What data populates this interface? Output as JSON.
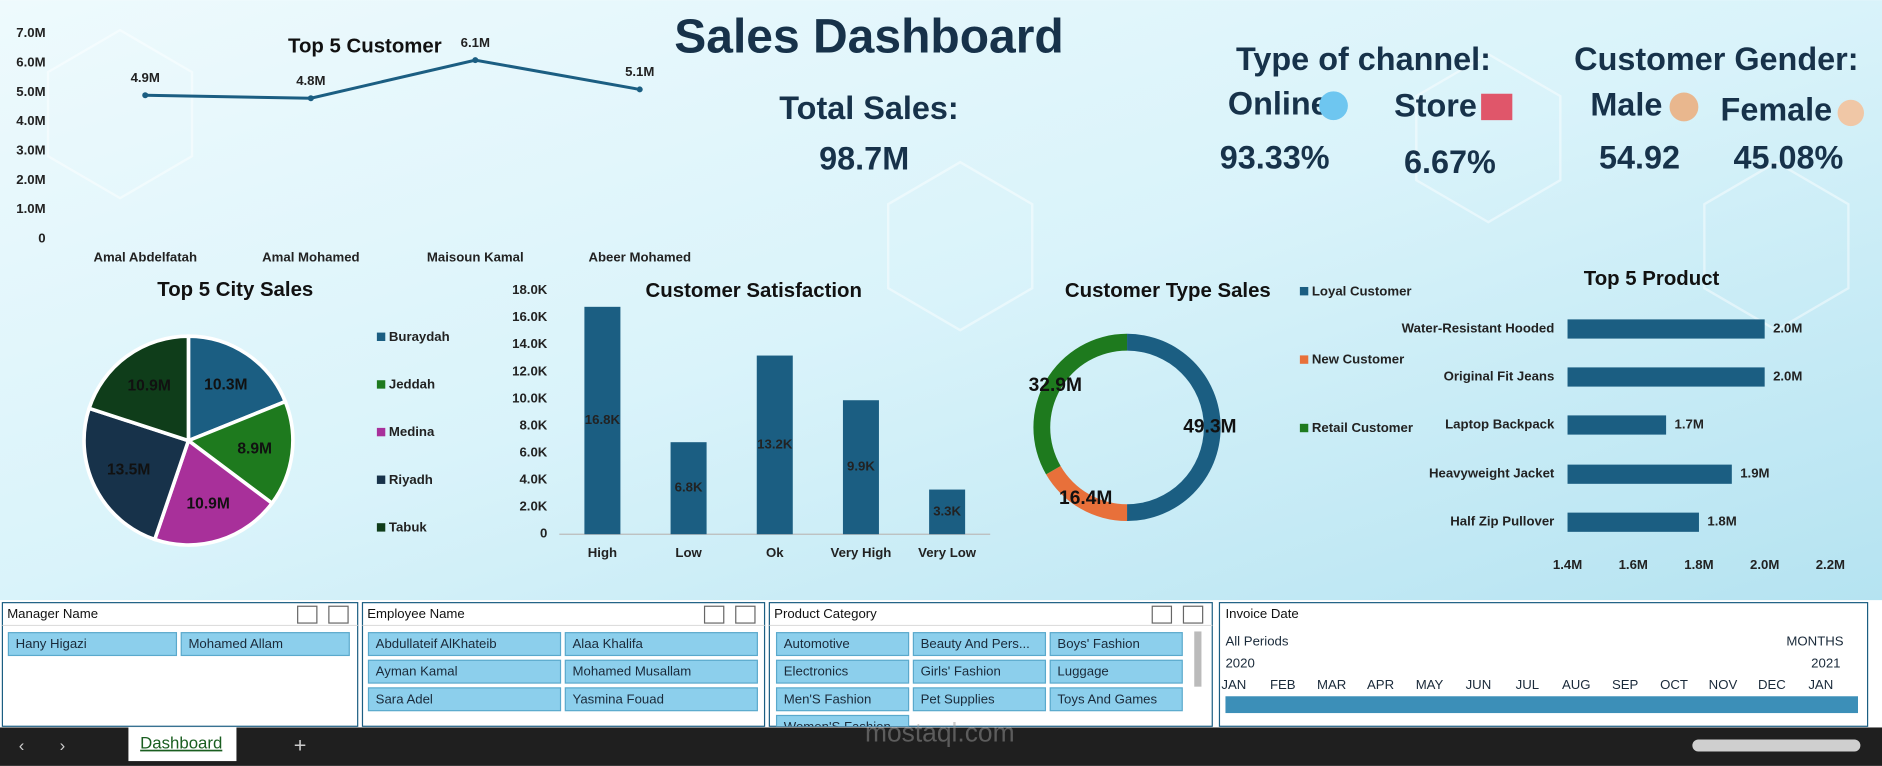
{
  "header": {
    "title": "Sales Dashboard"
  },
  "kpis": {
    "total_sales": {
      "label": "Total Sales:",
      "value": "98.7M"
    },
    "channel": {
      "title": "Type of channel:",
      "items": [
        {
          "label": "Online",
          "value": "93.33%"
        },
        {
          "label": "Store",
          "value": "6.67%"
        }
      ]
    },
    "gender": {
      "title": "Customer Gender:",
      "items": [
        {
          "label": "Male",
          "value": "54.92"
        },
        {
          "label": "Female",
          "value": "45.08%"
        }
      ]
    }
  },
  "chart_data": [
    {
      "type": "line",
      "title": "Top 5 Customer",
      "color": "#1b5e82",
      "categories": [
        "Amal Abdelfatah",
        "Amal Mohamed",
        "Maisoun Kamal",
        "Abeer Mohamed"
      ],
      "values": [
        4.9,
        4.8,
        6.1,
        5.1
      ],
      "value_labels": [
        "4.9M",
        "4.8M",
        "6.1M",
        "5.1M"
      ],
      "ylim": [
        0,
        7
      ],
      "yticks": [
        0,
        {
          "value": 1,
          "label": "1.0M"
        },
        {
          "value": 2,
          "label": "2.0M"
        },
        {
          "value": 3,
          "label": "3.0M"
        },
        {
          "value": 4,
          "label": "4.0M"
        },
        {
          "value": 5,
          "label": "5.0M"
        },
        {
          "value": 6,
          "label": "6.0M"
        },
        {
          "value": 7,
          "label": "7.0M"
        }
      ],
      "grid": false
    },
    {
      "type": "pie",
      "title": "Top 5 City Sales",
      "categories": [
        "Buraydah",
        "Jeddah",
        "Medina",
        "Riyadh",
        "Tabuk"
      ],
      "values": [
        10.3,
        8.9,
        10.9,
        13.5,
        10.9
      ],
      "value_labels": [
        "10.3M",
        "8.9M",
        "10.9M",
        "13.5M",
        "10.9M"
      ],
      "colors": [
        "#1b5e82",
        "#1e7a1e",
        "#a8309a",
        "#17324a",
        "#0f3d1a"
      ],
      "legend": "right"
    },
    {
      "type": "bar",
      "title": "Customer Satisfaction",
      "color": "#1b5e82",
      "categories": [
        "High",
        "Low",
        "Ok",
        "Very High",
        "Very Low"
      ],
      "values": [
        16.8,
        6.8,
        13.2,
        9.9,
        3.3
      ],
      "value_labels": [
        "16.8K",
        "6.8K",
        "13.2K",
        "9.9K",
        "3.3K"
      ],
      "ylim": [
        0,
        18
      ],
      "yticks": [
        0,
        {
          "value": 2,
          "label": "2.0K"
        },
        {
          "value": 4,
          "label": "4.0K"
        },
        {
          "value": 6,
          "label": "6.0K"
        },
        {
          "value": 8,
          "label": "8.0K"
        },
        {
          "value": 10,
          "label": "10.0K"
        },
        {
          "value": 12,
          "label": "12.0K"
        },
        {
          "value": 14,
          "label": "14.0K"
        },
        {
          "value": 16,
          "label": "16.0K"
        },
        {
          "value": 18,
          "label": "18.0K"
        }
      ],
      "grid": false
    },
    {
      "type": "doughnut",
      "title": "Customer Type Sales",
      "categories": [
        "Loyal Customer",
        "New Customer",
        "Retail Customer"
      ],
      "values": [
        49.3,
        16.4,
        32.9
      ],
      "value_labels": [
        "49.3M",
        "16.4M",
        "32.9M"
      ],
      "colors": [
        "#1b5e82",
        "#e8703a",
        "#1e7a1e"
      ],
      "legend": "right"
    },
    {
      "type": "barh",
      "title": "Top 5 Product",
      "color": "#1b5e82",
      "categories": [
        "Water-Resistant Hooded",
        "Original Fit Jeans",
        "Laptop Backpack",
        "Heavyweight Jacket",
        "Half Zip Pullover"
      ],
      "values": [
        2.0,
        2.0,
        1.7,
        1.9,
        1.8
      ],
      "value_labels": [
        "2.0M",
        "2.0M",
        "1.7M",
        "1.9M",
        "1.8M"
      ],
      "xlim": [
        1.4,
        2.2
      ],
      "xticks": [
        {
          "value": 1.4,
          "label": "1.4M"
        },
        {
          "value": 1.6,
          "label": "1.6M"
        },
        {
          "value": 1.8,
          "label": "1.8M"
        },
        {
          "value": 2.0,
          "label": "2.0M"
        },
        {
          "value": 2.2,
          "label": "2.2M"
        }
      ],
      "grid": false
    }
  ],
  "slicers": [
    {
      "title": "Manager Name",
      "items": [
        "Hany Higazi",
        "Mohamed Allam"
      ]
    },
    {
      "title": "Employee Name",
      "items": [
        "Abdullateif AlKhateib",
        "Alaa Khalifa",
        "Ayman Kamal",
        "Mohamed Musallam",
        "Sara Adel",
        "Yasmina Fouad"
      ]
    },
    {
      "title": "Product Category",
      "items": [
        "Automotive",
        "Beauty And Pers...",
        "Boys' Fashion",
        "Electronics",
        "Girls' Fashion",
        "Luggage",
        "Men'S Fashion",
        "Pet Supplies",
        "Toys And Games",
        "Women'S Fashion"
      ]
    }
  ],
  "timeline": {
    "title": "Invoice Date",
    "period": "All Periods",
    "unit": "MONTHS",
    "years": [
      "2020",
      "2021"
    ],
    "months": [
      "JAN",
      "FEB",
      "MAR",
      "APR",
      "MAY",
      "JUN",
      "JUL",
      "AUG",
      "SEP",
      "OCT",
      "NOV",
      "DEC",
      "JAN"
    ]
  },
  "footer": {
    "tab": "Dashboard",
    "watermark": "mostaql.com"
  }
}
